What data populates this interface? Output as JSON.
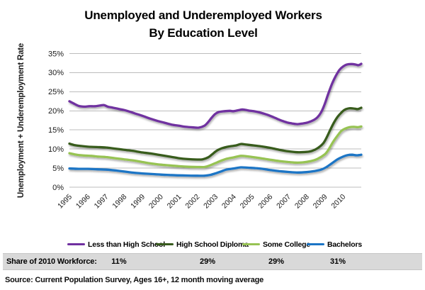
{
  "title": {
    "line1": "Unemployed and Underemployed Workers",
    "line2": "By Education Level"
  },
  "legend": {
    "items": [
      {
        "label": "Less than High School",
        "color": "#7030A0"
      },
      {
        "label": "High School Diploma",
        "color": "#375B1D"
      },
      {
        "label": "Some College",
        "color": "#97C353"
      },
      {
        "label": "Bachelors",
        "color": "#1B74C5"
      }
    ]
  },
  "share_row": {
    "label": "Share of 2010 Workforce:",
    "values": [
      "11%",
      "29%",
      "29%",
      "31%"
    ]
  },
  "source": "Source: Current Population Survey, Ages 16+, 12 month moving average",
  "colors": {
    "gridline": "#BDBDBD",
    "band_background": "#D9D9D9",
    "text": "#1A1A1A"
  },
  "chart_data": {
    "type": "line",
    "title": "Unemployed and Underemployed Workers By Education Level",
    "xlabel": "",
    "ylabel": "Unemployment + Underemployment Rate",
    "grid": true,
    "legend_position": "bottom",
    "x_axis": {
      "range": [
        1995,
        2011
      ],
      "tick_labels": [
        "1995",
        "1996",
        "1997",
        "1998",
        "1999",
        "2000",
        "2001",
        "2002",
        "2003",
        "2004",
        "2005",
        "2006",
        "2007",
        "2008",
        "2009",
        "2010"
      ]
    },
    "y_axis": {
      "range": [
        0,
        35
      ],
      "tick_values": [
        0,
        5,
        10,
        15,
        20,
        25,
        30,
        35
      ],
      "tick_labels": [
        "0%",
        "5%",
        "10%",
        "15%",
        "20%",
        "25%",
        "30%",
        "35%"
      ],
      "format": "percent"
    },
    "series": [
      {
        "name": "Less than High School",
        "color": "#7030A0",
        "points": [
          [
            1995,
            22.5
          ],
          [
            1995.2,
            22
          ],
          [
            1995.5,
            21.3
          ],
          [
            1995.8,
            21.1
          ],
          [
            1996.1,
            21.2
          ],
          [
            1996.4,
            21.2
          ],
          [
            1996.7,
            21.4
          ],
          [
            1996.9,
            21.5
          ],
          [
            1997.1,
            21.1
          ],
          [
            1997.4,
            20.8
          ],
          [
            1997.7,
            20.5
          ],
          [
            1998,
            20.2
          ],
          [
            1998.3,
            19.8
          ],
          [
            1998.6,
            19.3
          ],
          [
            1999,
            18.7
          ],
          [
            1999.4,
            18
          ],
          [
            1999.8,
            17.4
          ],
          [
            2000.2,
            16.9
          ],
          [
            2000.6,
            16.4
          ],
          [
            2001,
            16.1
          ],
          [
            2001.4,
            15.8
          ],
          [
            2001.8,
            15.65
          ],
          [
            2002.1,
            15.6
          ],
          [
            2002.4,
            16.1
          ],
          [
            2002.6,
            17
          ],
          [
            2002.8,
            18.2
          ],
          [
            2003,
            19.2
          ],
          [
            2003.2,
            19.7
          ],
          [
            2003.5,
            19.9
          ],
          [
            2003.8,
            20
          ],
          [
            2004,
            19.9
          ],
          [
            2004.3,
            20.2
          ],
          [
            2004.5,
            20.35
          ],
          [
            2004.8,
            20.1
          ],
          [
            2005.1,
            19.9
          ],
          [
            2005.4,
            19.6
          ],
          [
            2005.7,
            19.2
          ],
          [
            2006,
            18.7
          ],
          [
            2006.3,
            18.1
          ],
          [
            2006.6,
            17.5
          ],
          [
            2006.9,
            17
          ],
          [
            2007.2,
            16.7
          ],
          [
            2007.5,
            16.5
          ],
          [
            2007.8,
            16.7
          ],
          [
            2008.1,
            17
          ],
          [
            2008.4,
            17.6
          ],
          [
            2008.6,
            18.3
          ],
          [
            2008.8,
            19.6
          ],
          [
            2009,
            21.8
          ],
          [
            2009.2,
            24.6
          ],
          [
            2009.4,
            27.1
          ],
          [
            2009.6,
            29.1
          ],
          [
            2009.8,
            30.7
          ],
          [
            2010,
            31.6
          ],
          [
            2010.2,
            32.1
          ],
          [
            2010.45,
            32.25
          ],
          [
            2010.7,
            32.1
          ],
          [
            2010.85,
            31.95
          ],
          [
            2011,
            32.3
          ]
        ]
      },
      {
        "name": "High School Diploma",
        "color": "#375B1D",
        "points": [
          [
            1995,
            11.4
          ],
          [
            1995.3,
            11
          ],
          [
            1995.6,
            10.8
          ],
          [
            1996,
            10.6
          ],
          [
            1996.5,
            10.5
          ],
          [
            1997,
            10.4
          ],
          [
            1997.5,
            10.1
          ],
          [
            1998,
            9.8
          ],
          [
            1998.5,
            9.5
          ],
          [
            1999,
            9.1
          ],
          [
            1999.5,
            8.8
          ],
          [
            2000,
            8.4
          ],
          [
            2000.5,
            8
          ],
          [
            2001,
            7.6
          ],
          [
            2001.5,
            7.35
          ],
          [
            2002,
            7.25
          ],
          [
            2002.3,
            7.3
          ],
          [
            2002.6,
            7.8
          ],
          [
            2002.8,
            8.5
          ],
          [
            2003,
            9.3
          ],
          [
            2003.2,
            9.9
          ],
          [
            2003.5,
            10.4
          ],
          [
            2003.8,
            10.7
          ],
          [
            2004.1,
            10.9
          ],
          [
            2004.4,
            11.3
          ],
          [
            2004.7,
            11.15
          ],
          [
            2005,
            11
          ],
          [
            2005.5,
            10.7
          ],
          [
            2006,
            10.3
          ],
          [
            2006.5,
            9.8
          ],
          [
            2007,
            9.4
          ],
          [
            2007.5,
            9.15
          ],
          [
            2008,
            9.25
          ],
          [
            2008.3,
            9.5
          ],
          [
            2008.6,
            10.2
          ],
          [
            2008.9,
            11.4
          ],
          [
            2009.1,
            13
          ],
          [
            2009.3,
            15
          ],
          [
            2009.5,
            16.9
          ],
          [
            2009.7,
            18.4
          ],
          [
            2009.9,
            19.5
          ],
          [
            2010.1,
            20.3
          ],
          [
            2010.35,
            20.65
          ],
          [
            2010.6,
            20.6
          ],
          [
            2010.8,
            20.45
          ],
          [
            2011,
            20.8
          ]
        ]
      },
      {
        "name": "Some College",
        "color": "#97C353",
        "points": [
          [
            1995,
            8.9
          ],
          [
            1995.4,
            8.5
          ],
          [
            1995.8,
            8.3
          ],
          [
            1996.2,
            8.2
          ],
          [
            1996.6,
            8
          ],
          [
            1997,
            7.9
          ],
          [
            1997.5,
            7.6
          ],
          [
            1998,
            7.3
          ],
          [
            1998.5,
            7
          ],
          [
            1999,
            6.6
          ],
          [
            1999.5,
            6.2
          ],
          [
            2000,
            5.9
          ],
          [
            2000.5,
            5.7
          ],
          [
            2001,
            5.5
          ],
          [
            2001.5,
            5.35
          ],
          [
            2002,
            5.3
          ],
          [
            2002.4,
            5.3
          ],
          [
            2002.7,
            5.7
          ],
          [
            2003,
            6.3
          ],
          [
            2003.3,
            6.9
          ],
          [
            2003.6,
            7.4
          ],
          [
            2004,
            7.8
          ],
          [
            2004.4,
            8.2
          ],
          [
            2004.8,
            8.05
          ],
          [
            2005.2,
            7.8
          ],
          [
            2005.6,
            7.5
          ],
          [
            2006,
            7.2
          ],
          [
            2006.5,
            6.85
          ],
          [
            2007,
            6.6
          ],
          [
            2007.4,
            6.45
          ],
          [
            2007.8,
            6.5
          ],
          [
            2008.2,
            6.8
          ],
          [
            2008.6,
            7.4
          ],
          [
            2009,
            8.6
          ],
          [
            2009.2,
            9.8
          ],
          [
            2009.45,
            11.8
          ],
          [
            2009.7,
            13.5
          ],
          [
            2009.9,
            14.7
          ],
          [
            2010.1,
            15.3
          ],
          [
            2010.35,
            15.7
          ],
          [
            2010.6,
            15.8
          ],
          [
            2010.8,
            15.7
          ],
          [
            2011,
            15.9
          ]
        ]
      },
      {
        "name": "Bachelors",
        "color": "#1B74C5",
        "points": [
          [
            1995,
            4.9
          ],
          [
            1995.5,
            4.8
          ],
          [
            1996,
            4.8
          ],
          [
            1996.5,
            4.7
          ],
          [
            1997,
            4.6
          ],
          [
            1997.5,
            4.4
          ],
          [
            1998,
            4.1
          ],
          [
            1998.5,
            3.8
          ],
          [
            1999,
            3.6
          ],
          [
            1999.5,
            3.45
          ],
          [
            2000,
            3.3
          ],
          [
            2000.5,
            3.2
          ],
          [
            2001,
            3.1
          ],
          [
            2001.5,
            3.05
          ],
          [
            2002,
            3
          ],
          [
            2002.4,
            3
          ],
          [
            2002.7,
            3.2
          ],
          [
            2003,
            3.6
          ],
          [
            2003.3,
            4.1
          ],
          [
            2003.6,
            4.6
          ],
          [
            2004,
            4.9
          ],
          [
            2004.4,
            5.2
          ],
          [
            2004.8,
            5.1
          ],
          [
            2005.2,
            5
          ],
          [
            2005.6,
            4.8
          ],
          [
            2006,
            4.5
          ],
          [
            2006.5,
            4.2
          ],
          [
            2007,
            4
          ],
          [
            2007.5,
            3.85
          ],
          [
            2008,
            3.95
          ],
          [
            2008.4,
            4.2
          ],
          [
            2008.8,
            4.6
          ],
          [
            2009.1,
            5.3
          ],
          [
            2009.4,
            6.3
          ],
          [
            2009.7,
            7.3
          ],
          [
            2010,
            8
          ],
          [
            2010.25,
            8.4
          ],
          [
            2010.5,
            8.5
          ],
          [
            2010.75,
            8.35
          ],
          [
            2011,
            8.5
          ]
        ]
      }
    ]
  }
}
